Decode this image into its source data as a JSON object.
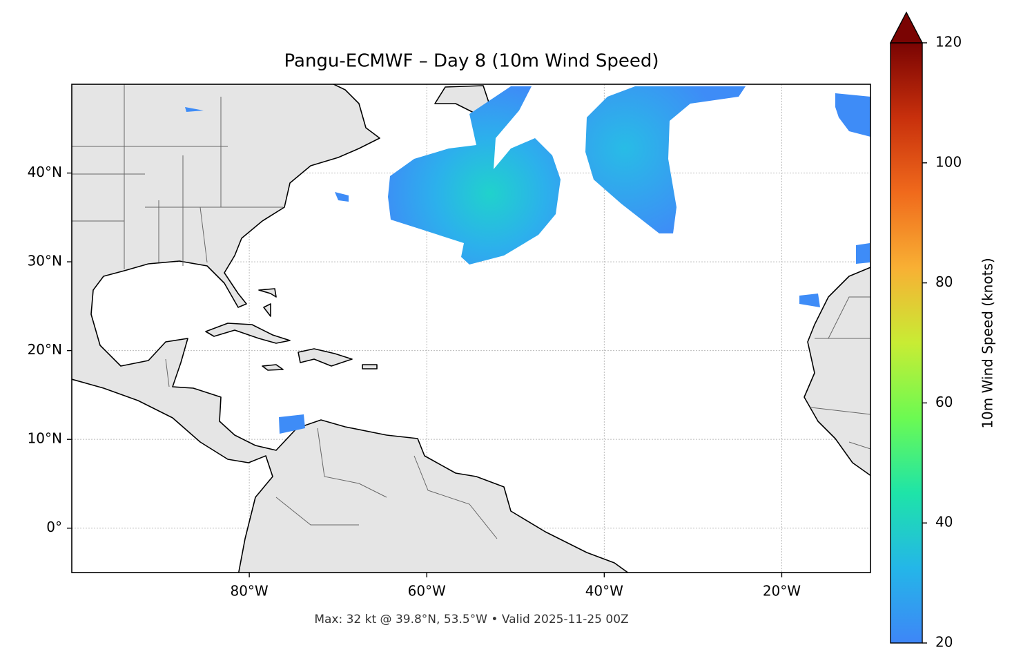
{
  "chart_data": {
    "type": "map",
    "title": "Pangu-ECMWF – Day 8 (10m Wind Speed)",
    "xlim": [
      -100,
      -10
    ],
    "ylim": [
      -5,
      50
    ],
    "xticks": [
      {
        "value": -80,
        "label": "80°W"
      },
      {
        "value": -60,
        "label": "60°W"
      },
      {
        "value": -40,
        "label": "40°W"
      },
      {
        "value": -20,
        "label": "20°W"
      }
    ],
    "yticks": [
      {
        "value": 0,
        "label": "0°"
      },
      {
        "value": 10,
        "label": "10°N"
      },
      {
        "value": 20,
        "label": "20°N"
      },
      {
        "value": 30,
        "label": "30°N"
      },
      {
        "value": 40,
        "label": "40°N"
      }
    ],
    "grid": true,
    "colorbar": {
      "label": "10m Wind Speed (knots)",
      "lim": [
        20,
        120
      ],
      "ticks": [
        20,
        40,
        60,
        80,
        100,
        120
      ],
      "colors": [
        "#3e86f7",
        "#24b6e8",
        "#1ee4a8",
        "#6cfa52",
        "#c8ec34",
        "#f8b034",
        "#f06a1c",
        "#c8300c",
        "#7a0403"
      ]
    },
    "note": "Max: 32 kt @ 39.8°N, 53.5°W • Valid 2025-11-25 00Z"
  }
}
